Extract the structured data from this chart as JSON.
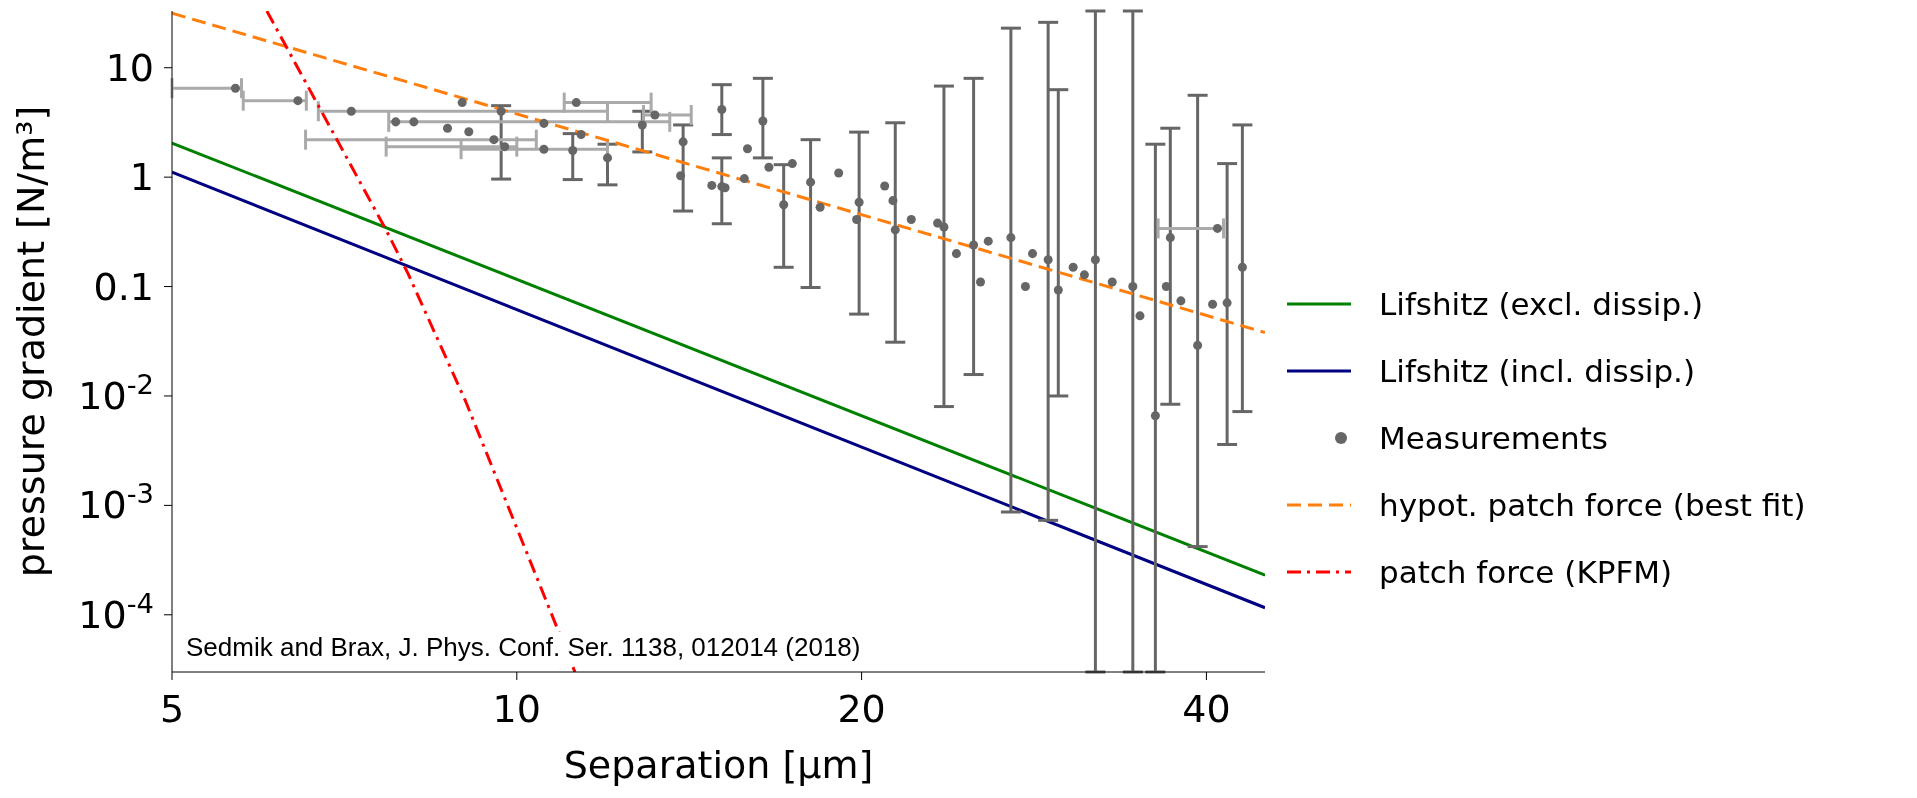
{
  "chart_data": {
    "type": "line",
    "xlabel": "Separation [µm]",
    "ylabel": "pressure gradient [N/m³]",
    "log": "xy",
    "xlim": [
      5,
      45
    ],
    "ylim": [
      3e-05,
      33
    ],
    "xticks": [
      5,
      10,
      20,
      40
    ],
    "yticks": [
      {
        "value": 0.0001,
        "label": "10$^{-4}$"
      },
      {
        "value": 0.001,
        "label": "10$^{-3}$"
      },
      {
        "value": 0.01,
        "label": "10$^{-2}$"
      },
      0.1,
      1,
      10
    ],
    "legend": "right",
    "grid": false,
    "annotations": [
      "Sedmik and Brax, J. Phys. Conf. Ser. 1138, 012014 (2018)"
    ],
    "series": [
      {
        "name": "Lifshitz (excl. dissip.)",
        "color": "#008000",
        "line_style": "solid",
        "x": [
          5,
          45
        ],
        "values": [
          2.05,
          0.00023
        ]
      },
      {
        "name": "Lifshitz (incl. dissip.)",
        "color": "#000080",
        "line_style": "solid",
        "x": [
          5,
          45
        ],
        "values": [
          1.11,
          0.000116
        ]
      },
      {
        "name": "Measurements",
        "type": "scatter",
        "color": "#666666",
        "marker": "circle",
        "x": [
          5.68,
          6.44,
          7.17,
          7.84,
          8.13,
          8.7,
          9.08,
          8.96,
          9.55,
          9.76,
          10.56,
          11.27,
          9.69,
          10.56,
          11.38,
          11.19,
          12.0,
          12.87,
          13.2,
          15.1,
          13.97,
          13.9,
          15.1,
          16.4,
          15.2,
          15.9,
          17.1,
          16.6,
          18.05,
          19.1,
          19.9,
          20.95,
          21.4,
          22.1,
          23.6,
          25.05,
          25.8,
          27.0,
          27.8,
          29.1,
          29.7,
          31.3,
          32.0,
          34.5,
          35.0,
          36.1,
          37.2,
          38.0,
          39.3,
          40.9,
          41.7,
          43.0,
          40.5,
          14.8,
          15.8,
          17.4,
          18.4,
          19.8,
          21.3,
          23.3,
          24.2,
          25.4,
          28.2,
          30.6,
          33.1,
          36.9
        ],
        "values": [
          6.5,
          5.0,
          4.0,
          3.2,
          3.2,
          2.8,
          2.6,
          4.8,
          2.2,
          1.9,
          1.8,
          4.8,
          4.0,
          3.1,
          2.45,
          1.75,
          1.5,
          3.0,
          3.7,
          4.15,
          2.1,
          1.03,
          0.82,
          3.26,
          0.8,
          1.82,
          0.56,
          1.23,
          0.9,
          1.09,
          0.59,
          0.83,
          0.33,
          0.41,
          0.35,
          0.24,
          0.26,
          0.28,
          0.1,
          0.176,
          0.093,
          0.128,
          0.176,
          0.1,
          0.054,
          0.0066,
          0.28,
          0.074,
          0.029,
          0.34,
          0.071,
          0.15,
          0.069,
          0.84,
          0.97,
          1.33,
          0.53,
          0.41,
          0.61,
          0.38,
          0.2,
          0.11,
          0.2,
          0.15,
          0.11,
          0.1
        ],
        "errors": [
          null,
          null,
          null,
          null,
          null,
          null,
          null,
          null,
          null,
          null,
          null,
          null,
          [
            0.96,
            4.5
          ],
          null,
          null,
          [
            0.95,
            2.5
          ],
          [
            0.85,
            2.0
          ],
          [
            1.7,
            4.0
          ],
          null,
          [
            2.45,
            7.0
          ],
          [
            0.49,
            3.0
          ],
          null,
          [
            0.375,
            1.5
          ],
          [
            1.5,
            8.0
          ],
          null,
          null,
          [
            0.15,
            1.3
          ],
          null,
          [
            0.098,
            2.2
          ],
          null,
          [
            0.056,
            2.58
          ],
          null,
          [
            0.031,
            3.14
          ],
          null,
          [
            0.008,
            6.8
          ],
          [
            0.0157,
            8.0
          ],
          null,
          [
            0.00087,
            23
          ],
          null,
          [
            0.00073,
            26
          ],
          [
            0.01,
            6.3
          ],
          null,
          [
            3e-05,
            33
          ],
          [
            3e-05,
            33
          ],
          null,
          [
            3e-05,
            2.0
          ],
          [
            0.0084,
            2.8
          ],
          null,
          [
            0.00042,
            5.6
          ],
          null,
          [
            0.0036,
            1.33
          ],
          [
            0.0072,
            3.0
          ],
          null,
          null,
          null,
          null,
          null,
          null,
          null,
          null,
          null,
          null,
          null,
          null,
          null,
          null
        ],
        "xerrors": [
          [
            5.0,
            5.75
          ],
          [
            5.77,
            6.55
          ],
          [
            6.71,
            12.0
          ],
          [
            7.73,
            13.6
          ],
          null,
          null,
          null,
          null,
          [
            6.54,
            10.4
          ],
          [
            7.69,
            10.0
          ],
          [
            8.94,
            12.0
          ],
          [
            11.0,
            13.1
          ],
          null,
          null,
          null,
          null,
          null,
          null,
          [
            12.9,
            14.2
          ],
          null,
          null,
          null,
          null,
          null,
          null,
          null,
          null,
          null,
          null,
          null,
          null,
          null,
          null,
          null,
          null,
          null,
          null,
          null,
          null,
          null,
          null,
          null,
          null,
          null,
          null,
          null,
          null,
          null,
          null,
          [
            36.3,
            41.4
          ],
          null,
          null,
          null,
          null,
          null,
          null,
          null,
          null,
          null,
          null,
          null,
          null,
          null,
          null,
          null,
          null
        ]
      },
      {
        "name": "hypot. patch force (best fit)",
        "color": "#ff7f0e",
        "line_style": "dashed",
        "x": [
          5,
          45
        ],
        "values": [
          31.5,
          0.038
        ]
      },
      {
        "name": "patch force (KPFM)",
        "color": "#ff0000",
        "line_style": "dashdot",
        "x": [
          6.05,
          7.7,
          8.04,
          9.02,
          11.24
        ],
        "values": [
          33,
          0.32,
          0.13,
          0.009,
          3e-05
        ]
      }
    ]
  }
}
